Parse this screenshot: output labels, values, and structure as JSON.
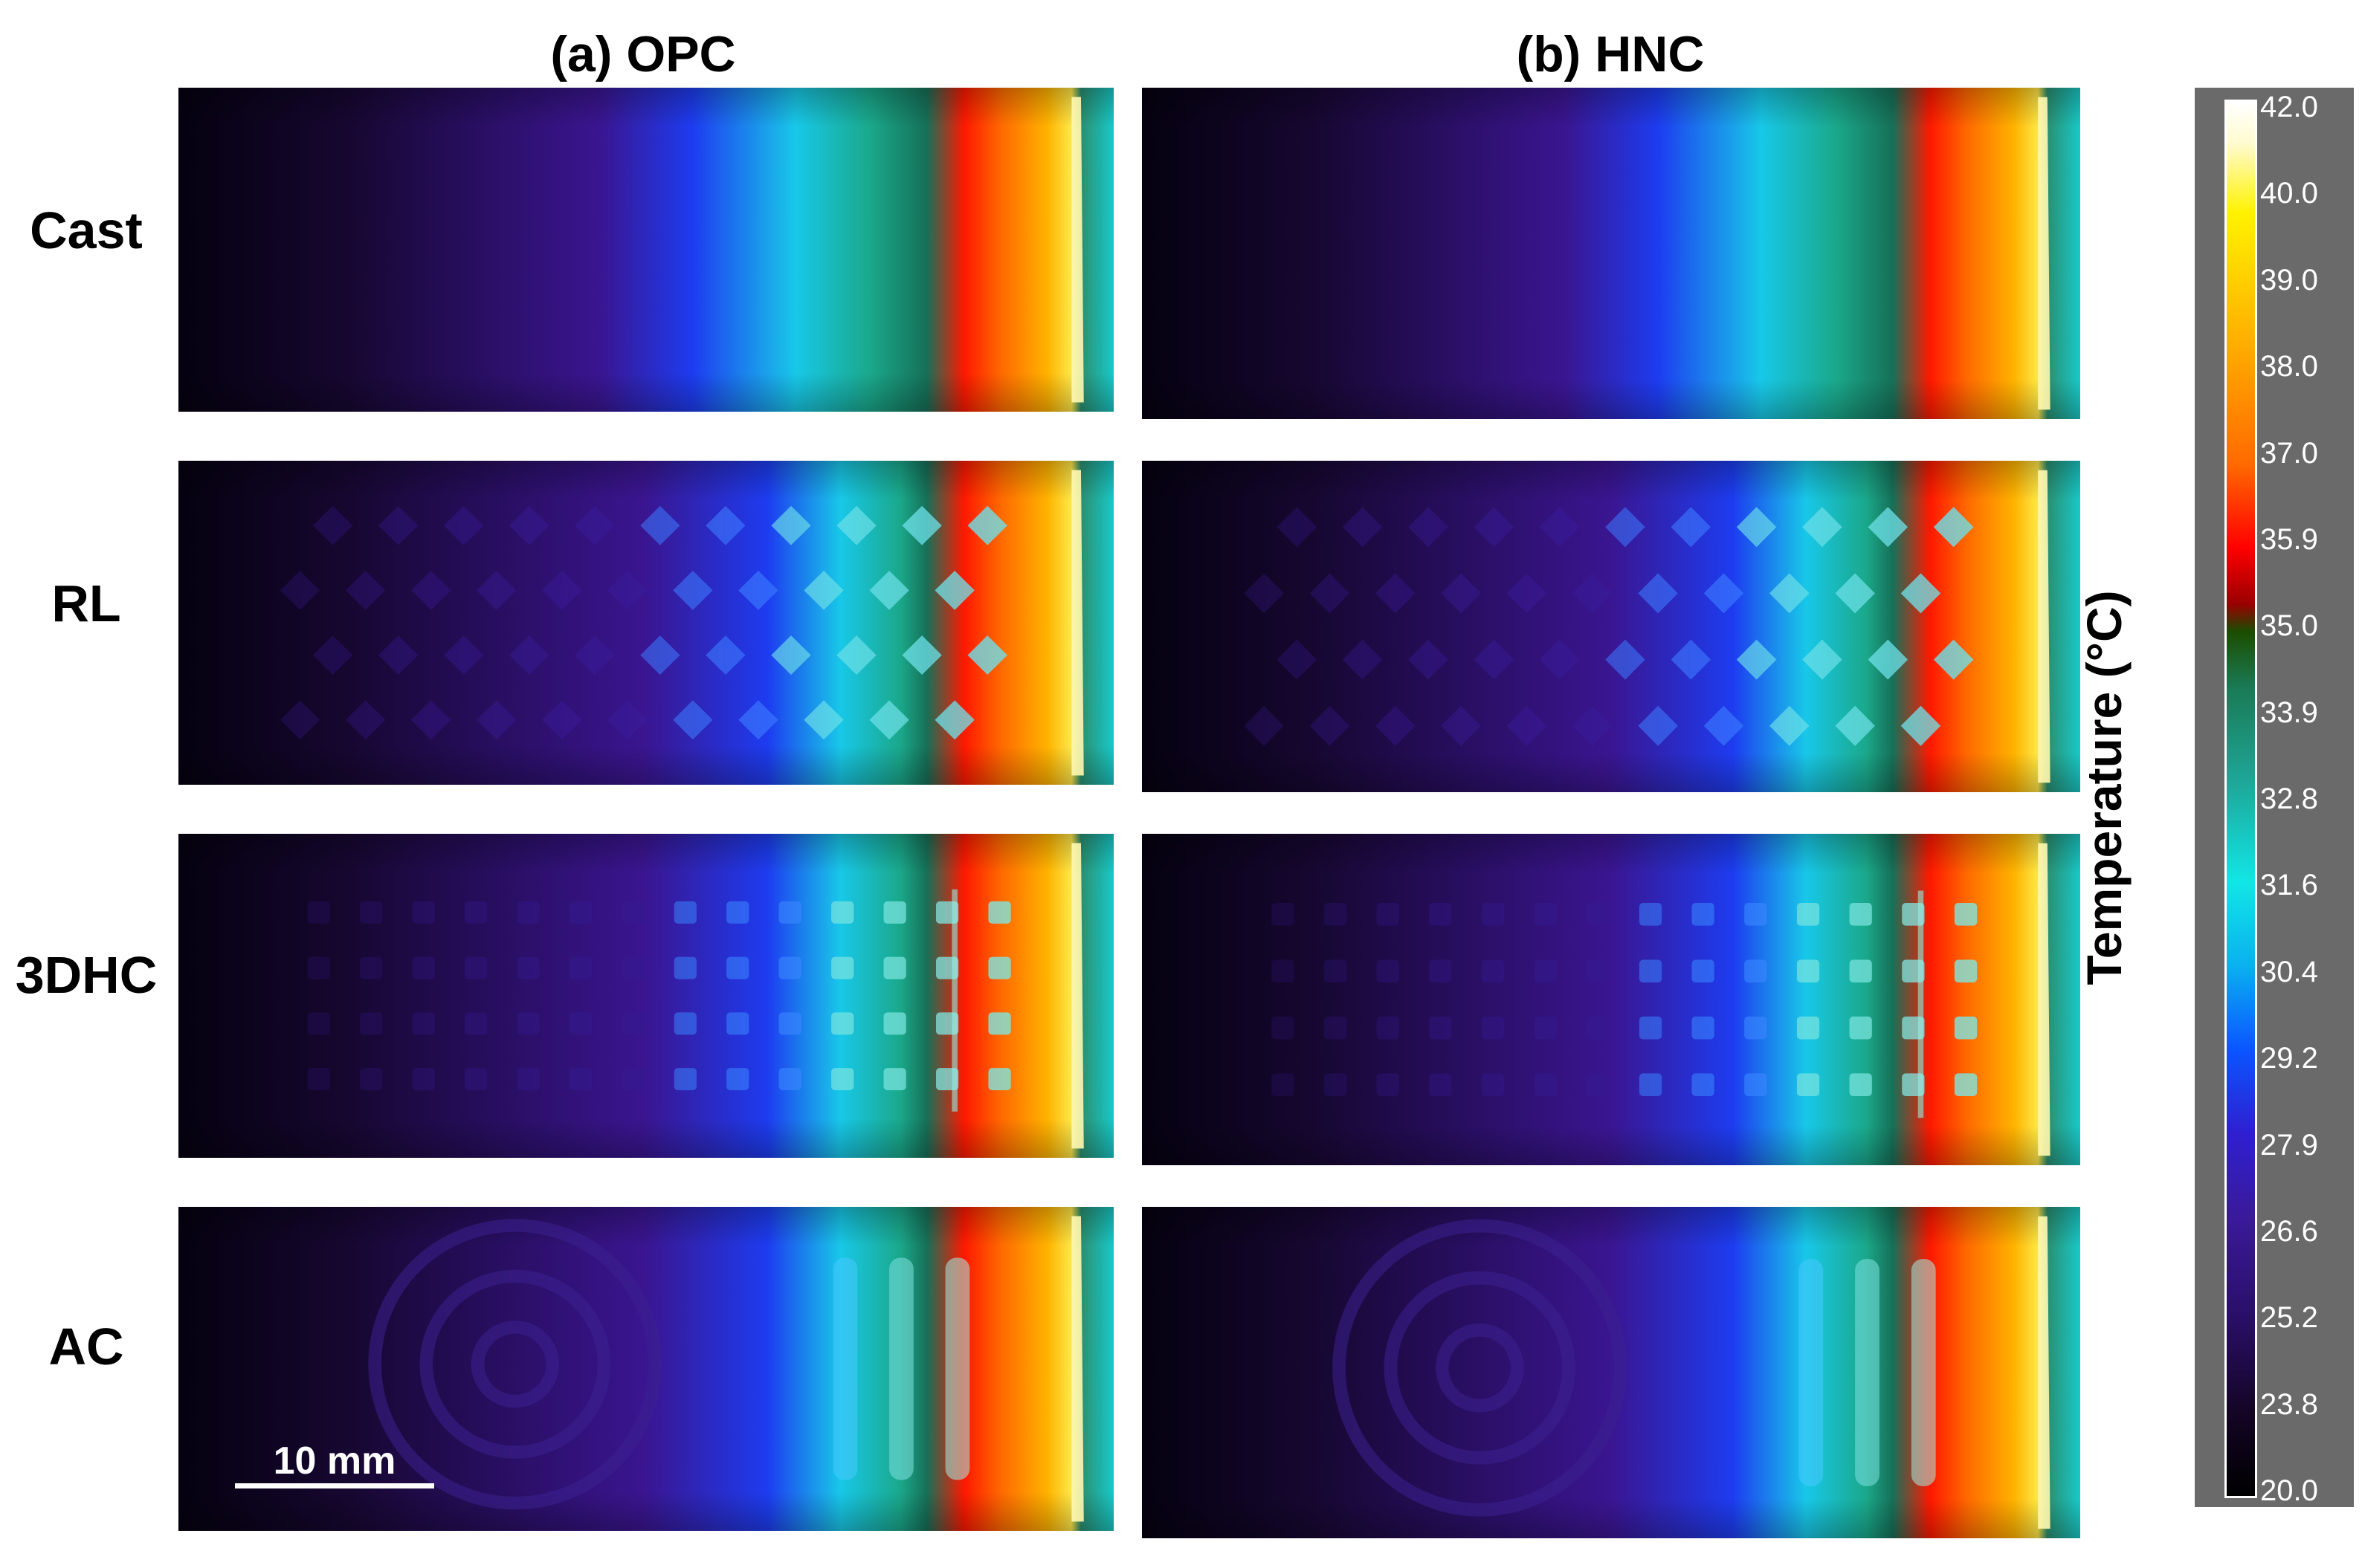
{
  "columns": [
    {
      "id": "opc",
      "title": "(a) OPC"
    },
    {
      "id": "hnc",
      "title": "(b) HNC"
    }
  ],
  "rows": [
    {
      "id": "cast",
      "label": "Cast",
      "pattern": "none"
    },
    {
      "id": "rl",
      "label": "RL",
      "pattern": "lattice"
    },
    {
      "id": "3dhc",
      "label": "3DHC",
      "pattern": "honeycomb"
    },
    {
      "id": "ac",
      "label": "AC",
      "pattern": "spiral"
    }
  ],
  "scale_bar": {
    "label": "10 mm"
  },
  "colorbar": {
    "title": "Temperature (°C)",
    "min": 20.0,
    "max": 42.0,
    "ticks": [
      "42.0",
      "40.0",
      "39.0",
      "38.0",
      "37.0",
      "35.9",
      "35.0",
      "33.9",
      "32.8",
      "31.6",
      "30.4",
      "29.2",
      "27.9",
      "26.6",
      "25.2",
      "23.8",
      "20.0"
    ],
    "colormap": [
      "#000000",
      "#2a0f6a",
      "#3a1a9a",
      "#0a55ff",
      "#11e6e6",
      "#1a7a55",
      "#9a0000",
      "#ff0000",
      "#ff6a00",
      "#fff200",
      "#ffffff"
    ]
  }
}
